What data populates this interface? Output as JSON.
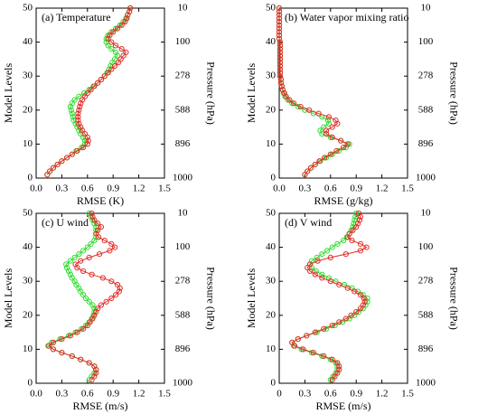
{
  "chart_data": [
    {
      "type": "line",
      "title": "(a) Temperature",
      "xlabel": "RMSE (K)",
      "ylabel": "Model Levels",
      "y2label": "Pressure (hPa)",
      "xlim": [
        0,
        1.5
      ],
      "xticks": [
        {
          "value": 0,
          "label": "0.0"
        },
        0.3,
        0.6,
        0.9,
        1.2,
        1.5
      ],
      "ylim": [
        0,
        50
      ],
      "yticks": [
        0,
        10,
        20,
        30,
        40,
        50
      ],
      "y2ticks": [
        1000,
        896,
        588,
        278,
        100,
        10
      ],
      "y": [
        1,
        2,
        3,
        4,
        5,
        6,
        7,
        8,
        9,
        10,
        11,
        12,
        13,
        14,
        15,
        16,
        17,
        18,
        19,
        20,
        21,
        22,
        23,
        24,
        25,
        26,
        27,
        28,
        29,
        30,
        31,
        32,
        33,
        34,
        35,
        36,
        37,
        38,
        39,
        40,
        41,
        42,
        43,
        44,
        45,
        46,
        47,
        48,
        49,
        50
      ],
      "series": [
        {
          "color": "#33dd33",
          "values": [
            0.13,
            0.16,
            0.2,
            0.25,
            0.3,
            0.36,
            0.42,
            0.47,
            0.53,
            0.57,
            0.57,
            0.55,
            0.52,
            0.5,
            0.48,
            0.46,
            0.44,
            0.43,
            0.42,
            0.41,
            0.4,
            0.42,
            0.45,
            0.5,
            0.56,
            0.62,
            0.67,
            0.72,
            0.76,
            0.8,
            0.83,
            0.85,
            0.87,
            0.89,
            0.92,
            0.95,
            0.93,
            0.88,
            0.84,
            0.82,
            0.82,
            0.84,
            0.88,
            0.93,
            0.98,
            1.02,
            1.05,
            1.07,
            1.09,
            1.1
          ]
        },
        {
          "color": "#e0302a",
          "values": [
            0.13,
            0.16,
            0.2,
            0.25,
            0.3,
            0.36,
            0.42,
            0.48,
            0.55,
            0.6,
            0.61,
            0.6,
            0.57,
            0.54,
            0.52,
            0.5,
            0.49,
            0.49,
            0.49,
            0.5,
            0.51,
            0.52,
            0.54,
            0.57,
            0.6,
            0.64,
            0.68,
            0.72,
            0.76,
            0.8,
            0.84,
            0.88,
            0.92,
            0.96,
            0.99,
            1.02,
            1.05,
            1.0,
            0.93,
            0.88,
            0.84,
            0.86,
            0.9,
            0.95,
            1.0,
            1.04,
            1.06,
            1.07,
            1.09,
            1.1
          ]
        }
      ]
    },
    {
      "type": "line",
      "title": "(b) Water vapor mixing ratio",
      "xlabel": "RMSE (g/kg)",
      "ylabel": "Model Levels",
      "y2label": "Pressure (hPa)",
      "xlim": [
        0,
        1.5
      ],
      "xticks": [
        {
          "value": 0,
          "label": "0.0"
        },
        0.3,
        0.6,
        0.9,
        1.2,
        1.5
      ],
      "ylim": [
        0,
        50
      ],
      "yticks": [
        0,
        10,
        20,
        30,
        40,
        50
      ],
      "y2ticks": [
        1000,
        896,
        588,
        278,
        100,
        10
      ],
      "y": [
        1,
        2,
        3,
        4,
        5,
        6,
        7,
        8,
        9,
        10,
        11,
        12,
        13,
        14,
        15,
        16,
        17,
        18,
        19,
        20,
        21,
        22,
        23,
        24,
        25,
        26,
        27,
        28,
        29,
        30,
        31,
        32,
        33,
        34,
        35,
        36,
        37,
        38,
        39,
        40,
        41,
        42,
        43,
        44,
        45,
        46,
        47,
        48,
        49,
        50
      ],
      "series": [
        {
          "color": "#33dd33",
          "values": [
            0.3,
            0.33,
            0.37,
            0.42,
            0.48,
            0.55,
            0.62,
            0.7,
            0.78,
            0.82,
            0.72,
            0.6,
            0.5,
            0.48,
            0.52,
            0.58,
            0.57,
            0.5,
            0.4,
            0.3,
            0.22,
            0.15,
            0.1,
            0.07,
            0.05,
            0.04,
            0.03,
            0.02,
            0.02,
            0.01,
            0.01,
            0.01,
            0.01,
            0.01,
            0.01,
            0.01,
            0.01,
            0.01,
            0.01,
            0.01,
            0,
            0,
            0,
            0,
            0,
            0,
            0,
            0,
            0,
            0
          ]
        },
        {
          "color": "#e0302a",
          "values": [
            0.3,
            0.33,
            0.37,
            0.42,
            0.47,
            0.53,
            0.6,
            0.67,
            0.75,
            0.8,
            0.72,
            0.62,
            0.55,
            0.55,
            0.62,
            0.68,
            0.66,
            0.58,
            0.46,
            0.35,
            0.25,
            0.17,
            0.12,
            0.08,
            0.06,
            0.04,
            0.03,
            0.02,
            0.02,
            0.01,
            0.01,
            0.01,
            0.01,
            0.01,
            0.01,
            0.01,
            0.01,
            0.01,
            0.01,
            0.01,
            0,
            0,
            0,
            0,
            0,
            0,
            0,
            0,
            0,
            0
          ]
        }
      ]
    },
    {
      "type": "line",
      "title": "(c) U wind",
      "xlabel": "RMSE (m/s)",
      "ylabel": "Model Levels",
      "y2label": "Pressure (hPa)",
      "xlim": [
        0,
        1.5
      ],
      "xticks": [
        {
          "value": 0,
          "label": "0.0"
        },
        0.3,
        0.6,
        0.9,
        1.2,
        1.5
      ],
      "ylim": [
        0,
        50
      ],
      "yticks": [
        0,
        10,
        20,
        30,
        40,
        50
      ],
      "y2ticks": [
        1000,
        896,
        588,
        278,
        100,
        10
      ],
      "y": [
        1,
        2,
        3,
        4,
        5,
        6,
        7,
        8,
        9,
        10,
        11,
        12,
        13,
        14,
        15,
        16,
        17,
        18,
        19,
        20,
        21,
        22,
        23,
        24,
        25,
        26,
        27,
        28,
        29,
        30,
        31,
        32,
        33,
        34,
        35,
        36,
        37,
        38,
        39,
        40,
        41,
        42,
        43,
        44,
        45,
        46,
        47,
        48,
        49,
        50
      ],
      "series": [
        {
          "color": "#33dd33",
          "values": [
            0.62,
            0.65,
            0.68,
            0.7,
            0.68,
            0.62,
            0.52,
            0.42,
            0.3,
            0.2,
            0.14,
            0.18,
            0.28,
            0.38,
            0.46,
            0.53,
            0.58,
            0.62,
            0.65,
            0.67,
            0.68,
            0.68,
            0.66,
            0.62,
            0.58,
            0.55,
            0.52,
            0.5,
            0.47,
            0.45,
            0.42,
            0.4,
            0.38,
            0.36,
            0.35,
            0.4,
            0.45,
            0.5,
            0.55,
            0.6,
            0.64,
            0.68,
            0.7,
            0.7,
            0.7,
            0.7,
            0.68,
            0.66,
            0.64,
            0.62
          ]
        },
        {
          "color": "#e0302a",
          "values": [
            0.65,
            0.68,
            0.7,
            0.7,
            0.68,
            0.62,
            0.52,
            0.42,
            0.3,
            0.2,
            0.15,
            0.2,
            0.3,
            0.4,
            0.48,
            0.55,
            0.6,
            0.63,
            0.66,
            0.68,
            0.7,
            0.72,
            0.76,
            0.82,
            0.88,
            0.93,
            0.97,
            0.98,
            0.95,
            0.88,
            0.78,
            0.65,
            0.55,
            0.48,
            0.46,
            0.52,
            0.62,
            0.74,
            0.86,
            0.92,
            0.88,
            0.8,
            0.73,
            0.7,
            0.72,
            0.76,
            0.72,
            0.68,
            0.66,
            0.65
          ]
        }
      ]
    },
    {
      "type": "line",
      "title": "(d) V wind",
      "xlabel": "RMSE (m/s)",
      "ylabel": "Model Levels",
      "y2label": "Pressure (hPa)",
      "xlim": [
        0,
        1.5
      ],
      "xticks": [
        0,
        0.3,
        0.6,
        0.9,
        1.2,
        1.5
      ],
      "ylim": [
        0,
        50
      ],
      "yticks": [
        0,
        10,
        20,
        30,
        40,
        50
      ],
      "y2ticks": [
        1000,
        896,
        588,
        278,
        100,
        10
      ],
      "y": [
        1,
        2,
        3,
        4,
        5,
        6,
        7,
        8,
        9,
        10,
        11,
        12,
        13,
        14,
        15,
        16,
        17,
        18,
        19,
        20,
        21,
        22,
        23,
        24,
        25,
        26,
        27,
        28,
        29,
        30,
        31,
        32,
        33,
        34,
        35,
        36,
        37,
        38,
        39,
        40,
        41,
        42,
        43,
        44,
        45,
        46,
        47,
        48,
        49,
        50
      ],
      "series": [
        {
          "color": "#33dd33",
          "values": [
            0.6,
            0.63,
            0.66,
            0.68,
            0.68,
            0.66,
            0.6,
            0.5,
            0.38,
            0.26,
            0.17,
            0.15,
            0.22,
            0.32,
            0.44,
            0.55,
            0.65,
            0.74,
            0.82,
            0.88,
            0.93,
            0.98,
            1.01,
            1.03,
            1.03,
            0.98,
            0.92,
            0.85,
            0.76,
            0.66,
            0.58,
            0.5,
            0.43,
            0.38,
            0.36,
            0.38,
            0.44,
            0.5,
            0.56,
            0.62,
            0.68,
            0.75,
            0.79,
            0.82,
            0.84,
            0.86,
            0.87,
            0.88,
            0.89,
            0.9
          ]
        },
        {
          "color": "#e0302a",
          "values": [
            0.62,
            0.65,
            0.68,
            0.7,
            0.7,
            0.68,
            0.62,
            0.52,
            0.4,
            0.28,
            0.18,
            0.15,
            0.22,
            0.32,
            0.42,
            0.52,
            0.62,
            0.7,
            0.78,
            0.84,
            0.9,
            0.95,
            0.98,
            1.0,
            0.99,
            0.95,
            0.88,
            0.8,
            0.7,
            0.6,
            0.5,
            0.42,
            0.36,
            0.33,
            0.36,
            0.45,
            0.6,
            0.78,
            0.95,
            1.02,
            0.95,
            0.85,
            0.8,
            0.82,
            0.86,
            0.9,
            0.92,
            0.94,
            0.95,
            0.93
          ]
        }
      ]
    }
  ]
}
